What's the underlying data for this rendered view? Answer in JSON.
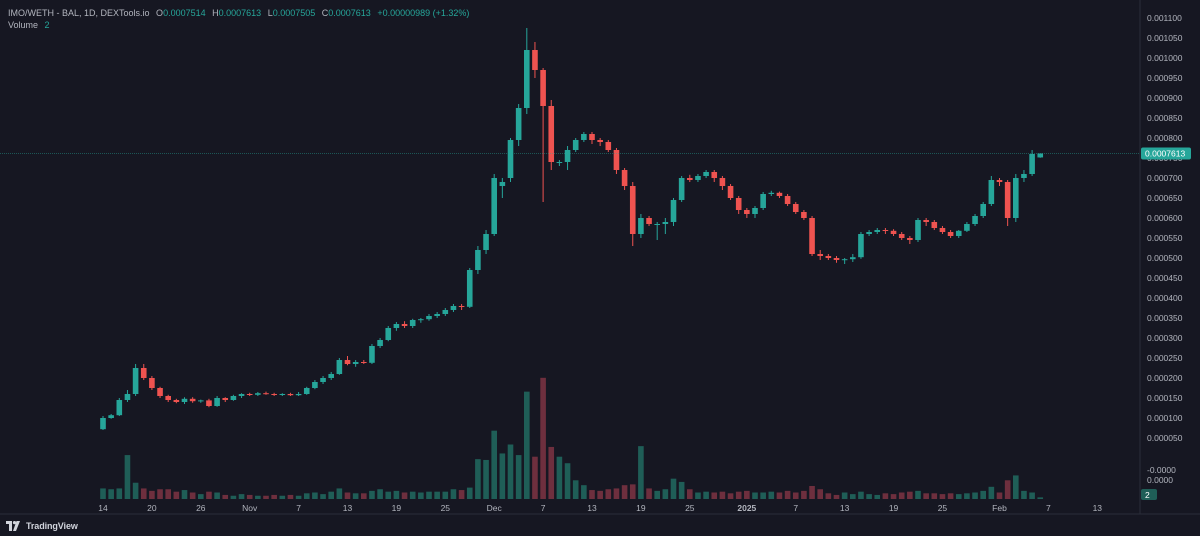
{
  "legend": {
    "symbol": "IMO/WETH - BAL, 1D, DEXTools.io",
    "open_label": "O",
    "open": "0.0007514",
    "high_label": "H",
    "high": "0.0007613",
    "low_label": "L",
    "low": "0.0007505",
    "close_label": "C",
    "close": "0.0007613",
    "change": "+0.00000989 (+1.32%)",
    "volume_label": "Volume",
    "volume": "2"
  },
  "branding": "TradingView",
  "last_price_badge": "0.0007613",
  "volume_badge": "2",
  "colors": {
    "bg": "#161722",
    "up": "#26a69a",
    "down": "#ef5350",
    "up_vol": "#1f5e57",
    "down_vol": "#6e2f3e",
    "grid_text": "#b2b5be"
  },
  "chart_data": {
    "type": "candlestick",
    "ylim": [
      -6.5e-05,
      0.00111
    ],
    "y_ticks": [
      "0.001100",
      "0.001050",
      "0.001000",
      "0.000950",
      "0.000900",
      "0.000850",
      "0.000800",
      "0.000750",
      "0.000700",
      "0.000650",
      "0.000600",
      "0.000550",
      "0.000500",
      "0.000450",
      "0.000400",
      "0.000350",
      "0.000300",
      "0.000250",
      "0.000200",
      "0.000150",
      "0.000100",
      "0.000050",
      "-0.0000",
      "0.0000"
    ],
    "x_ticks": [
      {
        "day": 0,
        "label": "14"
      },
      {
        "day": 6,
        "label": "20"
      },
      {
        "day": 12,
        "label": "26"
      },
      {
        "day": 18,
        "label": "Nov"
      },
      {
        "day": 24,
        "label": "7"
      },
      {
        "day": 30,
        "label": "13"
      },
      {
        "day": 36,
        "label": "19"
      },
      {
        "day": 42,
        "label": "25"
      },
      {
        "day": 48,
        "label": "Dec"
      },
      {
        "day": 54,
        "label": "7"
      },
      {
        "day": 60,
        "label": "13"
      },
      {
        "day": 66,
        "label": "19"
      },
      {
        "day": 72,
        "label": "25"
      },
      {
        "day": 79,
        "label": "2025"
      },
      {
        "day": 85,
        "label": "7"
      },
      {
        "day": 91,
        "label": "13"
      },
      {
        "day": 97,
        "label": "19"
      },
      {
        "day": 103,
        "label": "25"
      },
      {
        "day": 110,
        "label": "Feb"
      },
      {
        "day": 116,
        "label": "7"
      },
      {
        "day": 122,
        "label": "13"
      }
    ],
    "candles": [
      {
        "d": 0,
        "o": 7.2e-05,
        "h": 0.000105,
        "l": 7e-05,
        "c": 0.0001,
        "v": 0.13
      },
      {
        "d": 1,
        "o": 0.0001,
        "h": 0.00011,
        "l": 9.8e-05,
        "c": 0.000107,
        "v": 0.12
      },
      {
        "d": 2,
        "o": 0.000107,
        "h": 0.00015,
        "l": 0.000105,
        "c": 0.000145,
        "v": 0.13
      },
      {
        "d": 3,
        "o": 0.000145,
        "h": 0.00017,
        "l": 0.00014,
        "c": 0.00016,
        "v": 0.54
      },
      {
        "d": 4,
        "o": 0.00016,
        "h": 0.000235,
        "l": 0.000155,
        "c": 0.000225,
        "v": 0.2
      },
      {
        "d": 5,
        "o": 0.000225,
        "h": 0.000235,
        "l": 0.000195,
        "c": 0.0002,
        "v": 0.13
      },
      {
        "d": 6,
        "o": 0.0002,
        "h": 0.000205,
        "l": 0.00017,
        "c": 0.000175,
        "v": 0.1
      },
      {
        "d": 7,
        "o": 0.000175,
        "h": 0.000178,
        "l": 0.00015,
        "c": 0.000155,
        "v": 0.12
      },
      {
        "d": 8,
        "o": 0.000155,
        "h": 0.000158,
        "l": 0.00014,
        "c": 0.000145,
        "v": 0.12
      },
      {
        "d": 9,
        "o": 0.000145,
        "h": 0.000148,
        "l": 0.000137,
        "c": 0.00014,
        "v": 0.09
      },
      {
        "d": 10,
        "o": 0.00014,
        "h": 0.000152,
        "l": 0.000135,
        "c": 0.000148,
        "v": 0.11
      },
      {
        "d": 11,
        "o": 0.000148,
        "h": 0.000152,
        "l": 0.000138,
        "c": 0.000142,
        "v": 0.08
      },
      {
        "d": 12,
        "o": 0.000142,
        "h": 0.000146,
        "l": 0.000138,
        "c": 0.000144,
        "v": 0.06
      },
      {
        "d": 13,
        "o": 0.000144,
        "h": 0.000148,
        "l": 0.000127,
        "c": 0.00013,
        "v": 0.09
      },
      {
        "d": 14,
        "o": 0.00013,
        "h": 0.000155,
        "l": 0.000128,
        "c": 0.00015,
        "v": 0.08
      },
      {
        "d": 15,
        "o": 0.00015,
        "h": 0.000152,
        "l": 0.00014,
        "c": 0.000145,
        "v": 0.05
      },
      {
        "d": 16,
        "o": 0.000145,
        "h": 0.000158,
        "l": 0.000143,
        "c": 0.000155,
        "v": 0.04
      },
      {
        "d": 17,
        "o": 0.000155,
        "h": 0.000162,
        "l": 0.00015,
        "c": 0.00016,
        "v": 0.06
      },
      {
        "d": 18,
        "o": 0.00016,
        "h": 0.000163,
        "l": 0.000155,
        "c": 0.000158,
        "v": 0.05
      },
      {
        "d": 19,
        "o": 0.000158,
        "h": 0.000165,
        "l": 0.000155,
        "c": 0.000162,
        "v": 0.04
      },
      {
        "d": 20,
        "o": 0.000162,
        "h": 0.000166,
        "l": 0.000158,
        "c": 0.00016,
        "v": 0.04
      },
      {
        "d": 21,
        "o": 0.00016,
        "h": 0.000163,
        "l": 0.000155,
        "c": 0.000158,
        "v": 0.05
      },
      {
        "d": 22,
        "o": 0.000158,
        "h": 0.000162,
        "l": 0.000155,
        "c": 0.00016,
        "v": 0.04
      },
      {
        "d": 23,
        "o": 0.00016,
        "h": 0.000163,
        "l": 0.000155,
        "c": 0.000157,
        "v": 0.05
      },
      {
        "d": 24,
        "o": 0.000157,
        "h": 0.000165,
        "l": 0.000155,
        "c": 0.00016,
        "v": 0.04
      },
      {
        "d": 25,
        "o": 0.00016,
        "h": 0.000178,
        "l": 0.000158,
        "c": 0.000175,
        "v": 0.07
      },
      {
        "d": 26,
        "o": 0.000175,
        "h": 0.000195,
        "l": 0.000172,
        "c": 0.00019,
        "v": 0.08
      },
      {
        "d": 27,
        "o": 0.00019,
        "h": 0.000205,
        "l": 0.000185,
        "c": 0.0002,
        "v": 0.06
      },
      {
        "d": 28,
        "o": 0.0002,
        "h": 0.000215,
        "l": 0.000195,
        "c": 0.00021,
        "v": 0.09
      },
      {
        "d": 29,
        "o": 0.00021,
        "h": 0.00025,
        "l": 0.000208,
        "c": 0.000245,
        "v": 0.13
      },
      {
        "d": 30,
        "o": 0.000245,
        "h": 0.000255,
        "l": 0.000232,
        "c": 0.000235,
        "v": 0.08
      },
      {
        "d": 31,
        "o": 0.000235,
        "h": 0.000245,
        "l": 0.000228,
        "c": 0.00024,
        "v": 0.07
      },
      {
        "d": 32,
        "o": 0.00024,
        "h": 0.000245,
        "l": 0.000235,
        "c": 0.000238,
        "v": 0.07
      },
      {
        "d": 33,
        "o": 0.000238,
        "h": 0.000285,
        "l": 0.000235,
        "c": 0.00028,
        "v": 0.1
      },
      {
        "d": 34,
        "o": 0.00028,
        "h": 0.0003,
        "l": 0.000275,
        "c": 0.000295,
        "v": 0.12
      },
      {
        "d": 35,
        "o": 0.000295,
        "h": 0.00033,
        "l": 0.000292,
        "c": 0.000325,
        "v": 0.09
      },
      {
        "d": 36,
        "o": 0.000325,
        "h": 0.00034,
        "l": 0.000318,
        "c": 0.000335,
        "v": 0.1
      },
      {
        "d": 37,
        "o": 0.000335,
        "h": 0.000342,
        "l": 0.000325,
        "c": 0.00033,
        "v": 0.08
      },
      {
        "d": 38,
        "o": 0.00033,
        "h": 0.000348,
        "l": 0.000325,
        "c": 0.000345,
        "v": 0.09
      },
      {
        "d": 39,
        "o": 0.000345,
        "h": 0.00035,
        "l": 0.000338,
        "c": 0.000347,
        "v": 0.08
      },
      {
        "d": 40,
        "o": 0.000347,
        "h": 0.00036,
        "l": 0.000343,
        "c": 0.000355,
        "v": 0.09
      },
      {
        "d": 41,
        "o": 0.000355,
        "h": 0.000365,
        "l": 0.00035,
        "c": 0.00036,
        "v": 0.09
      },
      {
        "d": 42,
        "o": 0.00036,
        "h": 0.000375,
        "l": 0.000355,
        "c": 0.00037,
        "v": 0.09
      },
      {
        "d": 43,
        "o": 0.00037,
        "h": 0.000385,
        "l": 0.000365,
        "c": 0.00038,
        "v": 0.12
      },
      {
        "d": 44,
        "o": 0.00038,
        "h": 0.000385,
        "l": 0.00037,
        "c": 0.000378,
        "v": 0.11
      },
      {
        "d": 45,
        "o": 0.000378,
        "h": 0.000475,
        "l": 0.000375,
        "c": 0.00047,
        "v": 0.14
      },
      {
        "d": 46,
        "o": 0.00047,
        "h": 0.00053,
        "l": 0.00046,
        "c": 0.00052,
        "v": 0.49
      },
      {
        "d": 47,
        "o": 0.00052,
        "h": 0.00057,
        "l": 0.00051,
        "c": 0.00056,
        "v": 0.48
      },
      {
        "d": 48,
        "o": 0.00056,
        "h": 0.00071,
        "l": 0.000555,
        "c": 0.0007,
        "v": 0.84
      },
      {
        "d": 49,
        "o": 0.00068,
        "h": 0.0007,
        "l": 0.00065,
        "c": 0.00069,
        "v": 0.56
      },
      {
        "d": 50,
        "o": 0.0007,
        "h": 0.0008,
        "l": 0.00069,
        "c": 0.000795,
        "v": 0.67
      },
      {
        "d": 51,
        "o": 0.000795,
        "h": 0.000885,
        "l": 0.00078,
        "c": 0.000875,
        "v": 0.54
      },
      {
        "d": 52,
        "o": 0.000875,
        "h": 0.001075,
        "l": 0.00086,
        "c": 0.00102,
        "v": 1.32
      },
      {
        "d": 53,
        "o": 0.00102,
        "h": 0.00104,
        "l": 0.00095,
        "c": 0.00097,
        "v": 0.52
      },
      {
        "d": 54,
        "o": 0.00097,
        "h": 0.000975,
        "l": 0.00064,
        "c": 0.00088,
        "v": 1.49
      },
      {
        "d": 55,
        "o": 0.00088,
        "h": 0.000895,
        "l": 0.00072,
        "c": 0.00074,
        "v": 0.64
      },
      {
        "d": 56,
        "o": 0.00074,
        "h": 0.000745,
        "l": 0.00073,
        "c": 0.00074,
        "v": 0.52
      },
      {
        "d": 57,
        "o": 0.00074,
        "h": 0.00078,
        "l": 0.00072,
        "c": 0.00077,
        "v": 0.44
      },
      {
        "d": 58,
        "o": 0.00077,
        "h": 0.0008,
        "l": 0.000765,
        "c": 0.000795,
        "v": 0.23
      },
      {
        "d": 59,
        "o": 0.000795,
        "h": 0.000815,
        "l": 0.00079,
        "c": 0.00081,
        "v": 0.17
      },
      {
        "d": 60,
        "o": 0.00081,
        "h": 0.000815,
        "l": 0.000785,
        "c": 0.000795,
        "v": 0.11
      },
      {
        "d": 61,
        "o": 0.000795,
        "h": 0.0008,
        "l": 0.00078,
        "c": 0.00079,
        "v": 0.1
      },
      {
        "d": 62,
        "o": 0.00079,
        "h": 0.000795,
        "l": 0.000765,
        "c": 0.00077,
        "v": 0.12
      },
      {
        "d": 63,
        "o": 0.00077,
        "h": 0.000775,
        "l": 0.00071,
        "c": 0.00072,
        "v": 0.13
      },
      {
        "d": 64,
        "o": 0.00072,
        "h": 0.000725,
        "l": 0.00067,
        "c": 0.00068,
        "v": 0.17
      },
      {
        "d": 65,
        "o": 0.00068,
        "h": 0.00069,
        "l": 0.00053,
        "c": 0.00056,
        "v": 0.18
      },
      {
        "d": 66,
        "o": 0.00056,
        "h": 0.00061,
        "l": 0.00055,
        "c": 0.0006,
        "v": 0.65
      },
      {
        "d": 67,
        "o": 0.0006,
        "h": 0.000605,
        "l": 0.00058,
        "c": 0.000585,
        "v": 0.13
      },
      {
        "d": 68,
        "o": 0.000585,
        "h": 0.00059,
        "l": 0.000545,
        "c": 0.000585,
        "v": 0.1
      },
      {
        "d": 69,
        "o": 0.000585,
        "h": 0.0006,
        "l": 0.00056,
        "c": 0.00059,
        "v": 0.12
      },
      {
        "d": 70,
        "o": 0.00059,
        "h": 0.00065,
        "l": 0.00058,
        "c": 0.000645,
        "v": 0.25
      },
      {
        "d": 71,
        "o": 0.000645,
        "h": 0.000705,
        "l": 0.00064,
        "c": 0.0007,
        "v": 0.21
      },
      {
        "d": 72,
        "o": 0.0007,
        "h": 0.000708,
        "l": 0.00069,
        "c": 0.000695,
        "v": 0.12
      },
      {
        "d": 73,
        "o": 0.000695,
        "h": 0.00071,
        "l": 0.00069,
        "c": 0.000705,
        "v": 0.08
      },
      {
        "d": 74,
        "o": 0.000705,
        "h": 0.00072,
        "l": 0.0007,
        "c": 0.000715,
        "v": 0.09
      },
      {
        "d": 75,
        "o": 0.000715,
        "h": 0.00072,
        "l": 0.00069,
        "c": 0.0007,
        "v": 0.08
      },
      {
        "d": 76,
        "o": 0.0007,
        "h": 0.000705,
        "l": 0.00067,
        "c": 0.00068,
        "v": 0.09
      },
      {
        "d": 77,
        "o": 0.00068,
        "h": 0.000685,
        "l": 0.000645,
        "c": 0.00065,
        "v": 0.07
      },
      {
        "d": 78,
        "o": 0.00065,
        "h": 0.000655,
        "l": 0.00061,
        "c": 0.00062,
        "v": 0.09
      },
      {
        "d": 79,
        "o": 0.00062,
        "h": 0.000625,
        "l": 0.0006,
        "c": 0.00061,
        "v": 0.1
      },
      {
        "d": 80,
        "o": 0.00061,
        "h": 0.00063,
        "l": 0.0006,
        "c": 0.000625,
        "v": 0.08
      },
      {
        "d": 81,
        "o": 0.000625,
        "h": 0.000665,
        "l": 0.00062,
        "c": 0.00066,
        "v": 0.08
      },
      {
        "d": 82,
        "o": 0.00066,
        "h": 0.000668,
        "l": 0.000655,
        "c": 0.000663,
        "v": 0.09
      },
      {
        "d": 83,
        "o": 0.000663,
        "h": 0.000666,
        "l": 0.00065,
        "c": 0.000655,
        "v": 0.08
      },
      {
        "d": 84,
        "o": 0.000655,
        "h": 0.00066,
        "l": 0.00063,
        "c": 0.000635,
        "v": 0.1
      },
      {
        "d": 85,
        "o": 0.000635,
        "h": 0.00064,
        "l": 0.00061,
        "c": 0.000615,
        "v": 0.08
      },
      {
        "d": 86,
        "o": 0.000615,
        "h": 0.00062,
        "l": 0.000595,
        "c": 0.0006,
        "v": 0.1
      },
      {
        "d": 87,
        "o": 0.0006,
        "h": 0.000605,
        "l": 0.000505,
        "c": 0.00051,
        "v": 0.16
      },
      {
        "d": 88,
        "o": 0.00051,
        "h": 0.00052,
        "l": 0.000495,
        "c": 0.000505,
        "v": 0.12
      },
      {
        "d": 89,
        "o": 0.000505,
        "h": 0.00051,
        "l": 0.000495,
        "c": 0.0005,
        "v": 0.07
      },
      {
        "d": 90,
        "o": 0.0005,
        "h": 0.000505,
        "l": 0.000488,
        "c": 0.000495,
        "v": 0.05
      },
      {
        "d": 91,
        "o": 0.000495,
        "h": 0.0005,
        "l": 0.000485,
        "c": 0.000497,
        "v": 0.08
      },
      {
        "d": 92,
        "o": 0.000497,
        "h": 0.00051,
        "l": 0.00049,
        "c": 0.000502,
        "v": 0.06
      },
      {
        "d": 93,
        "o": 0.000502,
        "h": 0.000565,
        "l": 0.000498,
        "c": 0.00056,
        "v": 0.09
      },
      {
        "d": 94,
        "o": 0.00056,
        "h": 0.00057,
        "l": 0.000555,
        "c": 0.000565,
        "v": 0.06
      },
      {
        "d": 95,
        "o": 0.000565,
        "h": 0.000575,
        "l": 0.00056,
        "c": 0.00057,
        "v": 0.05
      },
      {
        "d": 96,
        "o": 0.00057,
        "h": 0.000575,
        "l": 0.00056,
        "c": 0.000568,
        "v": 0.07
      },
      {
        "d": 97,
        "o": 0.000568,
        "h": 0.000572,
        "l": 0.000555,
        "c": 0.00056,
        "v": 0.06
      },
      {
        "d": 98,
        "o": 0.00056,
        "h": 0.000565,
        "l": 0.000545,
        "c": 0.00055,
        "v": 0.08
      },
      {
        "d": 99,
        "o": 0.00055,
        "h": 0.000555,
        "l": 0.000535,
        "c": 0.000545,
        "v": 0.09
      },
      {
        "d": 100,
        "o": 0.000545,
        "h": 0.0006,
        "l": 0.00054,
        "c": 0.000595,
        "v": 0.1
      },
      {
        "d": 101,
        "o": 0.000595,
        "h": 0.0006,
        "l": 0.00058,
        "c": 0.00059,
        "v": 0.07
      },
      {
        "d": 102,
        "o": 0.00059,
        "h": 0.000595,
        "l": 0.00057,
        "c": 0.000575,
        "v": 0.07
      },
      {
        "d": 103,
        "o": 0.000575,
        "h": 0.00058,
        "l": 0.00056,
        "c": 0.000565,
        "v": 0.06
      },
      {
        "d": 104,
        "o": 0.000565,
        "h": 0.00057,
        "l": 0.00055,
        "c": 0.000555,
        "v": 0.07
      },
      {
        "d": 105,
        "o": 0.000555,
        "h": 0.00057,
        "l": 0.00055,
        "c": 0.000568,
        "v": 0.06
      },
      {
        "d": 106,
        "o": 0.000568,
        "h": 0.00059,
        "l": 0.000565,
        "c": 0.000585,
        "v": 0.07
      },
      {
        "d": 107,
        "o": 0.000585,
        "h": 0.00061,
        "l": 0.00058,
        "c": 0.000605,
        "v": 0.08
      },
      {
        "d": 108,
        "o": 0.000605,
        "h": 0.00064,
        "l": 0.0006,
        "c": 0.000635,
        "v": 0.1
      },
      {
        "d": 109,
        "o": 0.000635,
        "h": 0.000705,
        "l": 0.00063,
        "c": 0.000695,
        "v": 0.15
      },
      {
        "d": 110,
        "o": 0.000695,
        "h": 0.0007,
        "l": 0.00068,
        "c": 0.00069,
        "v": 0.08
      },
      {
        "d": 111,
        "o": 0.00069,
        "h": 0.000695,
        "l": 0.00058,
        "c": 0.0006,
        "v": 0.23
      },
      {
        "d": 112,
        "o": 0.0006,
        "h": 0.00071,
        "l": 0.00059,
        "c": 0.0007,
        "v": 0.29
      },
      {
        "d": 113,
        "o": 0.0007,
        "h": 0.00072,
        "l": 0.00069,
        "c": 0.00071,
        "v": 0.1
      },
      {
        "d": 114,
        "o": 0.00071,
        "h": 0.00077,
        "l": 0.000705,
        "c": 0.00076,
        "v": 0.08
      },
      {
        "d": 115,
        "o": 0.0007514,
        "h": 0.0007613,
        "l": 0.0007505,
        "c": 0.0007613,
        "v": 0.02
      }
    ]
  }
}
